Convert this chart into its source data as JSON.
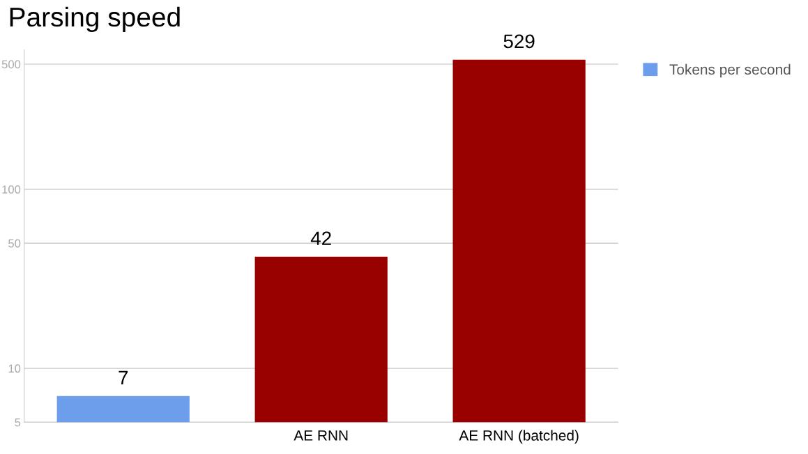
{
  "chart_data": {
    "type": "bar",
    "title": "Parsing speed",
    "categories": [
      null,
      "AE RNN",
      "AE RNN (batched)"
    ],
    "series": [
      {
        "name": "Tokens per second",
        "color": "#6d9eeb",
        "colors": [
          "#6d9eeb",
          "#990000",
          "#990000"
        ],
        "values": [
          7,
          42,
          529
        ]
      }
    ],
    "log": true,
    "ylim": [
      5,
      600
    ],
    "yticks": [
      5,
      10,
      50,
      100,
      500
    ],
    "grid": "y",
    "legend": "top right",
    "data_labels": true
  }
}
